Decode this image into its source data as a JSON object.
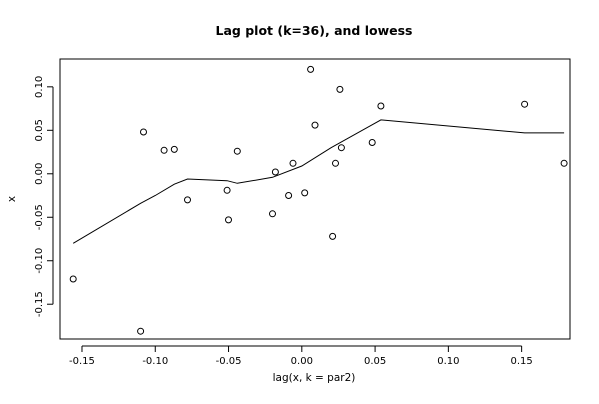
{
  "chart_data": {
    "type": "scatter",
    "title": "Lag plot (k=36), and lowess",
    "xlabel": "lag(x, k = par2)",
    "ylabel": "x",
    "xlim": [
      -0.165,
      0.183
    ],
    "ylim": [
      -0.19,
      0.132
    ],
    "x_ticks": [
      -0.15,
      -0.1,
      -0.05,
      0.0,
      0.05,
      0.1,
      0.15
    ],
    "x_tick_labels": [
      "-0.15",
      "-0.10",
      "-0.05",
      "0.00",
      "0.05",
      "0.10",
      "0.15"
    ],
    "y_ticks": [
      -0.15,
      -0.1,
      -0.05,
      0.0,
      0.05,
      0.1
    ],
    "y_tick_labels": [
      "-0.15",
      "-0.10",
      "-0.05",
      "0.00",
      "0.05",
      "0.10"
    ],
    "grid": false,
    "points": [
      {
        "x": -0.156,
        "y": -0.121
      },
      {
        "x": -0.11,
        "y": -0.181
      },
      {
        "x": -0.108,
        "y": 0.048
      },
      {
        "x": -0.094,
        "y": 0.027
      },
      {
        "x": -0.087,
        "y": 0.028
      },
      {
        "x": -0.078,
        "y": -0.03
      },
      {
        "x": -0.051,
        "y": -0.019
      },
      {
        "x": -0.05,
        "y": -0.053
      },
      {
        "x": -0.044,
        "y": 0.026
      },
      {
        "x": -0.02,
        "y": -0.046
      },
      {
        "x": -0.018,
        "y": 0.002
      },
      {
        "x": -0.009,
        "y": -0.025
      },
      {
        "x": -0.006,
        "y": 0.012
      },
      {
        "x": 0.002,
        "y": -0.022
      },
      {
        "x": 0.006,
        "y": 0.12
      },
      {
        "x": 0.009,
        "y": 0.056
      },
      {
        "x": 0.021,
        "y": -0.072
      },
      {
        "x": 0.023,
        "y": 0.012
      },
      {
        "x": 0.026,
        "y": 0.097
      },
      {
        "x": 0.027,
        "y": 0.03
      },
      {
        "x": 0.048,
        "y": 0.036
      },
      {
        "x": 0.054,
        "y": 0.078
      },
      {
        "x": 0.152,
        "y": 0.08
      },
      {
        "x": 0.179,
        "y": 0.012
      }
    ],
    "lowess": [
      {
        "x": -0.156,
        "y": -0.08
      },
      {
        "x": -0.11,
        "y": -0.034
      },
      {
        "x": -0.1,
        "y": -0.025
      },
      {
        "x": -0.087,
        "y": -0.012
      },
      {
        "x": -0.078,
        "y": -0.006
      },
      {
        "x": -0.051,
        "y": -0.008
      },
      {
        "x": -0.044,
        "y": -0.011
      },
      {
        "x": -0.02,
        "y": -0.004
      },
      {
        "x": 0.0,
        "y": 0.009
      },
      {
        "x": 0.02,
        "y": 0.03
      },
      {
        "x": 0.054,
        "y": 0.062
      },
      {
        "x": 0.152,
        "y": 0.047
      },
      {
        "x": 0.179,
        "y": 0.047
      }
    ]
  }
}
